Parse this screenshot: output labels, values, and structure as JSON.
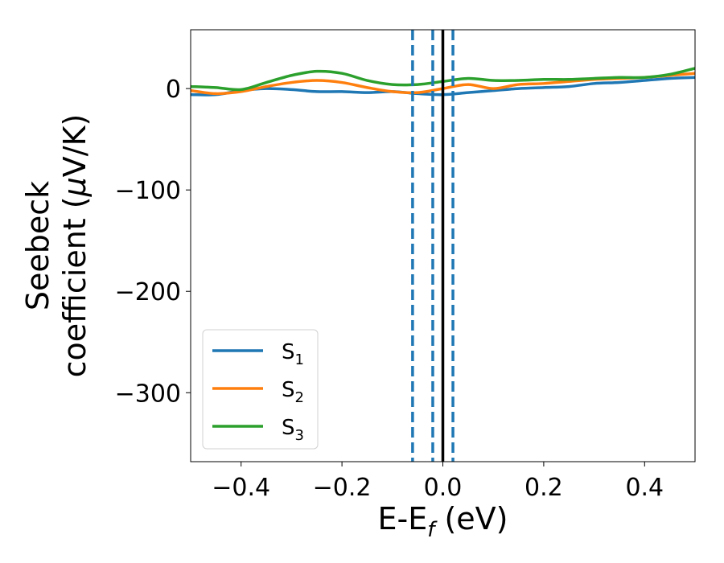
{
  "chart_data": {
    "type": "line",
    "xlabel": {
      "main": "E-E",
      "sub": "f",
      "unit": " (eV)"
    },
    "ylabel": {
      "line1": "Seebeck",
      "line2_pre": "coefficient  (",
      "mu": "μ",
      "line2_post": "V/K)"
    },
    "xlim": [
      -0.5,
      0.5
    ],
    "ylim": [
      -368,
      58
    ],
    "xticks": [
      -0.4,
      -0.2,
      0.0,
      0.2,
      0.4
    ],
    "xtick_labels": [
      "−0.4",
      "−0.2",
      "0.0",
      "0.2",
      "0.4"
    ],
    "yticks": [
      0,
      -100,
      -200,
      -300
    ],
    "ytick_labels": [
      "0",
      "−100",
      "−200",
      "−300"
    ],
    "grid": false,
    "legend_position": "lower-left",
    "series": [
      {
        "name": "S",
        "sub": "1",
        "color": "#1f77b4",
        "x": [
          -0.5,
          -0.45,
          -0.4,
          -0.35,
          -0.3,
          -0.25,
          -0.2,
          -0.15,
          -0.1,
          -0.05,
          0.0,
          0.05,
          0.1,
          0.15,
          0.2,
          0.25,
          0.3,
          0.35,
          0.4,
          0.45,
          0.5
        ],
        "y": [
          -6,
          -6,
          -2,
          0,
          -1,
          -3,
          -3,
          -4,
          -3,
          -5,
          -6,
          -4,
          -2,
          0,
          1,
          2,
          5,
          6,
          8,
          10,
          11
        ]
      },
      {
        "name": "S",
        "sub": "2",
        "color": "#ff7f0e",
        "x": [
          -0.5,
          -0.45,
          -0.4,
          -0.35,
          -0.3,
          -0.25,
          -0.2,
          -0.15,
          -0.1,
          -0.05,
          0.0,
          0.05,
          0.1,
          0.15,
          0.2,
          0.25,
          0.3,
          0.35,
          0.4,
          0.45,
          0.5
        ],
        "y": [
          -2,
          -5,
          -3,
          2,
          6,
          8,
          6,
          1,
          -3,
          -4,
          0,
          4,
          0,
          4,
          5,
          7,
          9,
          10,
          11,
          13,
          15
        ]
      },
      {
        "name": "S",
        "sub": "3",
        "color": "#2ca02c",
        "x": [
          -0.5,
          -0.45,
          -0.4,
          -0.35,
          -0.3,
          -0.25,
          -0.2,
          -0.15,
          -0.1,
          -0.05,
          0.0,
          0.05,
          0.1,
          0.15,
          0.2,
          0.25,
          0.3,
          0.35,
          0.4,
          0.45,
          0.5
        ],
        "y": [
          2,
          1,
          -1,
          6,
          13,
          17,
          15,
          8,
          4,
          4,
          7,
          10,
          8,
          8,
          9,
          9,
          10,
          11,
          11,
          14,
          20
        ]
      }
    ],
    "vertical_lines": [
      {
        "x": -0.06,
        "style": "dashed",
        "color": "#1f77b4"
      },
      {
        "x": -0.02,
        "style": "dashed",
        "color": "#1f77b4"
      },
      {
        "x": 0.02,
        "style": "dashed",
        "color": "#1f77b4"
      },
      {
        "x": 0.0,
        "style": "solid",
        "color": "#000000"
      }
    ]
  }
}
